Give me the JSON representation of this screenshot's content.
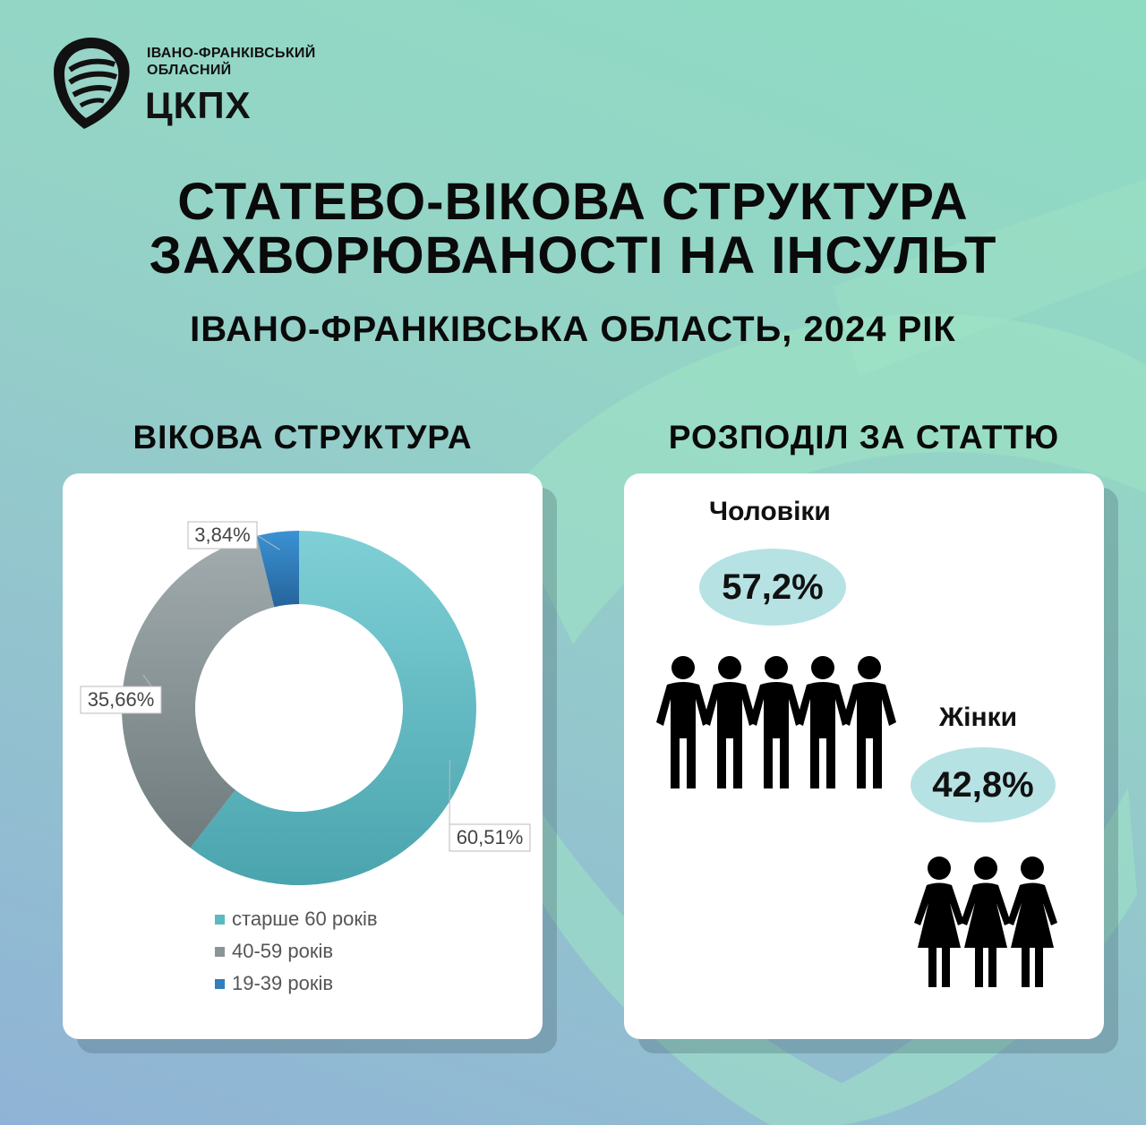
{
  "logo": {
    "line1": "ІВАНО-ФРАНКІВСЬКИЙ",
    "line2": "ОБЛАСНИЙ",
    "name": "ЦКПХ"
  },
  "title": {
    "line1": "СТАТЕВО-ВІКОВА СТРУКТУРА",
    "line2": "ЗАХВОРЮВАНОСТІ НА ІНСУЛЬТ"
  },
  "subtitle": "ІВАНО-ФРАНКІВСЬКА ОБЛАСТЬ, 2024 РІК",
  "left_section_title": "ВІКОВА СТРУКТУРА",
  "right_section_title": "РОЗПОДІЛ ЗА СТАТТЮ",
  "gender": {
    "men_label": "Чоловіки",
    "men_value": "57,2%",
    "women_label": "Жінки",
    "women_value": "42,8%"
  },
  "chart_data": [
    {
      "type": "pie",
      "variant": "donut",
      "title": "ВІКОВА СТРУКТУРА",
      "categories": [
        "старше 60 років",
        "40-59 років",
        "19-39 років"
      ],
      "values": [
        60.51,
        35.66,
        3.84
      ],
      "value_labels": [
        "60,51%",
        "35,66%",
        "3,84%"
      ],
      "colors": [
        "#5ab9c1",
        "#8a9597",
        "#2f7fc1"
      ],
      "legend": "bottom"
    },
    {
      "type": "table",
      "title": "РОЗПОДІЛ ЗА СТАТТЮ",
      "categories": [
        "Чоловіки",
        "Жінки"
      ],
      "values": [
        57.2,
        42.8
      ]
    }
  ]
}
